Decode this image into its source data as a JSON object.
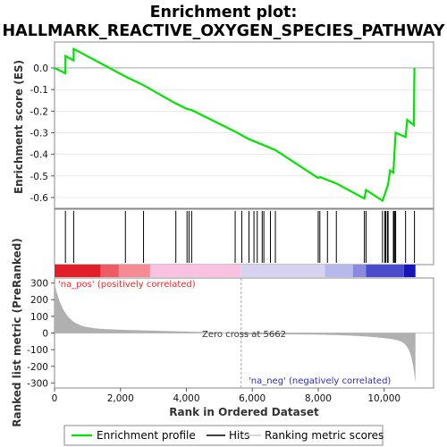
{
  "chart_data": {
    "type": "line",
    "title_line1": "Enrichment plot:",
    "title_line2": "HALLMARK_REACTIVE_OXYGEN_SPECIES_PATHWAY",
    "ylabel_top": "Enrichment score (ES)",
    "ylabel_bottom": "Ranked list metric (PreRanked)",
    "xlabel": "Rank in Ordered Dataset",
    "xlim": [
      0,
      11500
    ],
    "es_ylim": [
      -0.65,
      0.12
    ],
    "metric_ylim": [
      -330,
      330
    ],
    "x_ticks": [
      0,
      2000,
      4000,
      6000,
      8000,
      10000
    ],
    "x_tick_labels": [
      "0",
      "2,000",
      "4,000",
      "6,000",
      "8,000",
      "10,000"
    ],
    "es_ticks": [
      0.0,
      -0.1,
      -0.2,
      -0.3,
      -0.4,
      -0.5,
      -0.6
    ],
    "es_tick_labels": [
      "0.0",
      "-0.1",
      "-0.2",
      "-0.3",
      "-0.4",
      "-0.5",
      "-0.6"
    ],
    "metric_ticks": [
      300,
      200,
      100,
      0,
      -100,
      -200,
      -300
    ],
    "metric_tick_labels": [
      "300",
      "200",
      "100",
      "0",
      "-100",
      "-200",
      "-300"
    ],
    "zero_cross_label": "Zero cross at 5662",
    "zero_cross": 5662,
    "pos_label": "'na_pos' (positively correlated)",
    "neg_label": "'na_neg' (negatively correlated)",
    "legend": [
      "Enrichment profile",
      "Hits",
      "Ranking metric scores"
    ],
    "colors": {
      "es_line": "#00e400",
      "pos_label": "#ff2020",
      "neg_label": "#2a2acc",
      "metric_fill": "#b0b0b0"
    },
    "hits": [
      330,
      580,
      2150,
      2700,
      3680,
      4020,
      4080,
      4160,
      5480,
      5680,
      5900,
      6050,
      6150,
      6300,
      6350,
      6550,
      6700,
      8000,
      8050,
      8280,
      8550,
      9400,
      9450,
      9950,
      10020,
      10050,
      10100,
      10120,
      10280,
      10300,
      10330,
      10350,
      10650,
      10920
    ],
    "es_points": [
      [
        0,
        0.0
      ],
      [
        330,
        -0.025
      ],
      [
        331,
        0.055
      ],
      [
        580,
        0.035
      ],
      [
        581,
        0.088
      ],
      [
        2150,
        -0.04
      ],
      [
        2700,
        -0.08
      ],
      [
        3680,
        -0.165
      ],
      [
        4020,
        -0.19
      ],
      [
        4160,
        -0.195
      ],
      [
        5480,
        -0.295
      ],
      [
        5900,
        -0.33
      ],
      [
        6300,
        -0.355
      ],
      [
        6700,
        -0.38
      ],
      [
        8000,
        -0.51
      ],
      [
        8050,
        -0.505
      ],
      [
        8550,
        -0.535
      ],
      [
        9400,
        -0.605
      ],
      [
        9450,
        -0.565
      ],
      [
        9950,
        -0.615
      ],
      [
        10020,
        -0.585
      ],
      [
        10120,
        -0.54
      ],
      [
        10180,
        -0.475
      ],
      [
        10280,
        -0.485
      ],
      [
        10330,
        -0.345
      ],
      [
        10350,
        -0.3
      ],
      [
        10650,
        -0.32
      ],
      [
        10700,
        -0.24
      ],
      [
        10900,
        -0.265
      ],
      [
        10920,
        0.0
      ]
    ]
  }
}
